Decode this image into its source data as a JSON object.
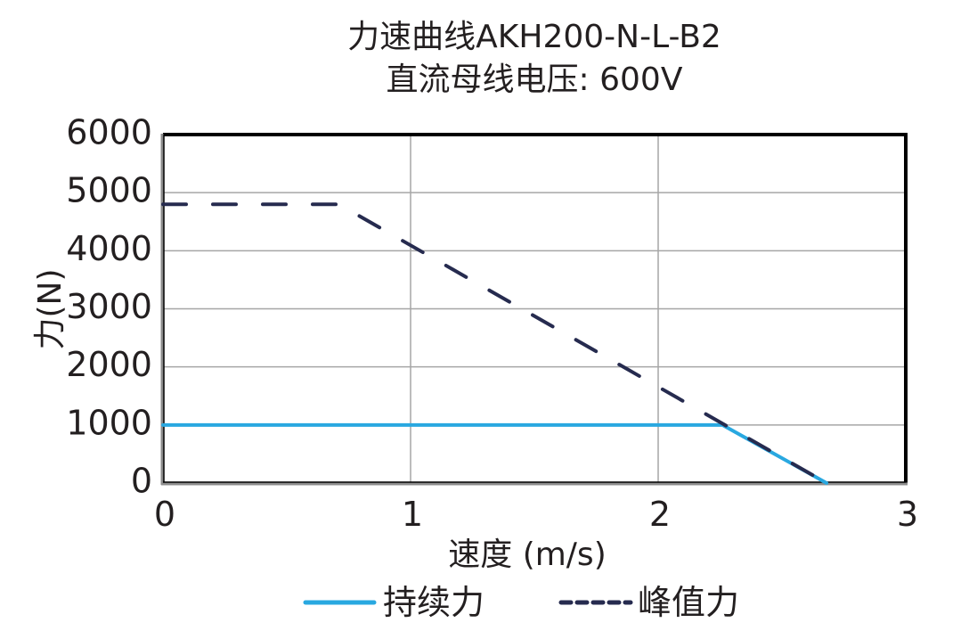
{
  "title": {
    "line1": "力速曲线AKH200-N-L-B2",
    "line2": "直流母线电压: 600V"
  },
  "colors": {
    "continuous": "#29a8e0",
    "peak": "#262b4f",
    "grid": "#a6a6a6",
    "frame": "#000000",
    "text": "#231f20"
  },
  "chart_data": {
    "type": "line",
    "title": "力速曲线AKH200-N-L-B2 直流母线电压: 600V",
    "xlabel": "速度 (m/s)",
    "ylabel": "力(N)",
    "xlim": [
      0,
      3
    ],
    "ylim": [
      0,
      6000
    ],
    "xticks": [
      "0",
      "1",
      "2",
      "3"
    ],
    "yticks": [
      "0",
      "1000",
      "2000",
      "3000",
      "4000",
      "5000",
      "6000"
    ],
    "grid": true,
    "legend_position": "bottom",
    "series": [
      {
        "name": "持续力",
        "style": "solid",
        "color": "#29a8e0",
        "x": [
          0,
          2.26,
          2.68
        ],
        "y": [
          1000,
          1000,
          0
        ]
      },
      {
        "name": "峰值力",
        "style": "dashed",
        "color": "#262b4f",
        "x": [
          0,
          0.71,
          2.68
        ],
        "y": [
          4800,
          4800,
          0
        ]
      }
    ]
  },
  "legend": {
    "continuous_label": "持续力",
    "peak_label": "峰值力"
  }
}
